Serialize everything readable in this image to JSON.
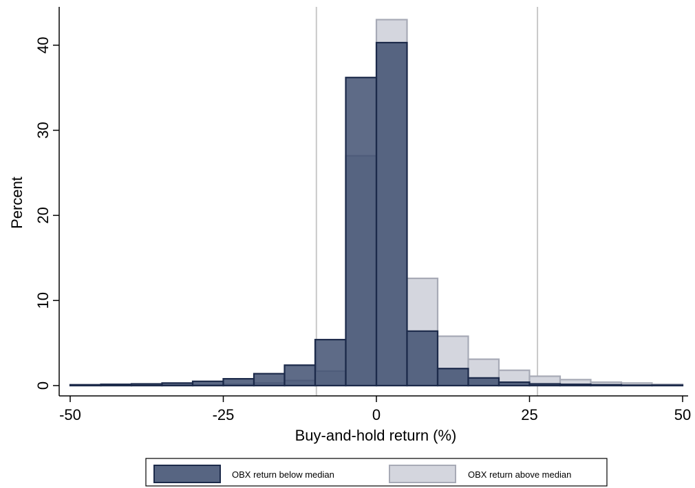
{
  "chart_data": {
    "type": "histogram",
    "xlabel": "Buy-and-hold return (%)",
    "ylabel": "Percent",
    "xlim": [
      -50,
      50
    ],
    "ylim": [
      0,
      44.5
    ],
    "xticks": [
      -50,
      -25,
      0,
      25,
      50
    ],
    "yticks": [
      0,
      10,
      20,
      30,
      40
    ],
    "bin_edges": [
      -50,
      -45,
      -40,
      -35,
      -30,
      -25,
      -20,
      -15,
      -10,
      -5,
      0,
      5,
      10,
      15,
      20,
      25,
      30,
      35,
      40,
      45,
      50
    ],
    "reference_lines_x": [
      -9.8,
      26.3
    ],
    "grid": false,
    "legend_position": "bottom",
    "series": [
      {
        "name": "OBX return above median",
        "color": "#d4d6de",
        "edge_color": "#a7aab6",
        "values": [
          0.05,
          0.05,
          0.05,
          0.05,
          0.1,
          0.15,
          0.3,
          0.6,
          1.7,
          27.0,
          43.0,
          12.6,
          5.8,
          3.1,
          1.8,
          1.1,
          0.7,
          0.4,
          0.3,
          0.15
        ]
      },
      {
        "name": "OBX return below median",
        "color": "#3a4a6c",
        "edge_color": "#1c2a4a",
        "values": [
          0.1,
          0.15,
          0.2,
          0.3,
          0.5,
          0.8,
          1.4,
          2.4,
          5.4,
          36.2,
          40.3,
          6.4,
          2.0,
          0.9,
          0.4,
          0.2,
          0.15,
          0.1,
          0.05,
          0.05
        ]
      }
    ]
  }
}
